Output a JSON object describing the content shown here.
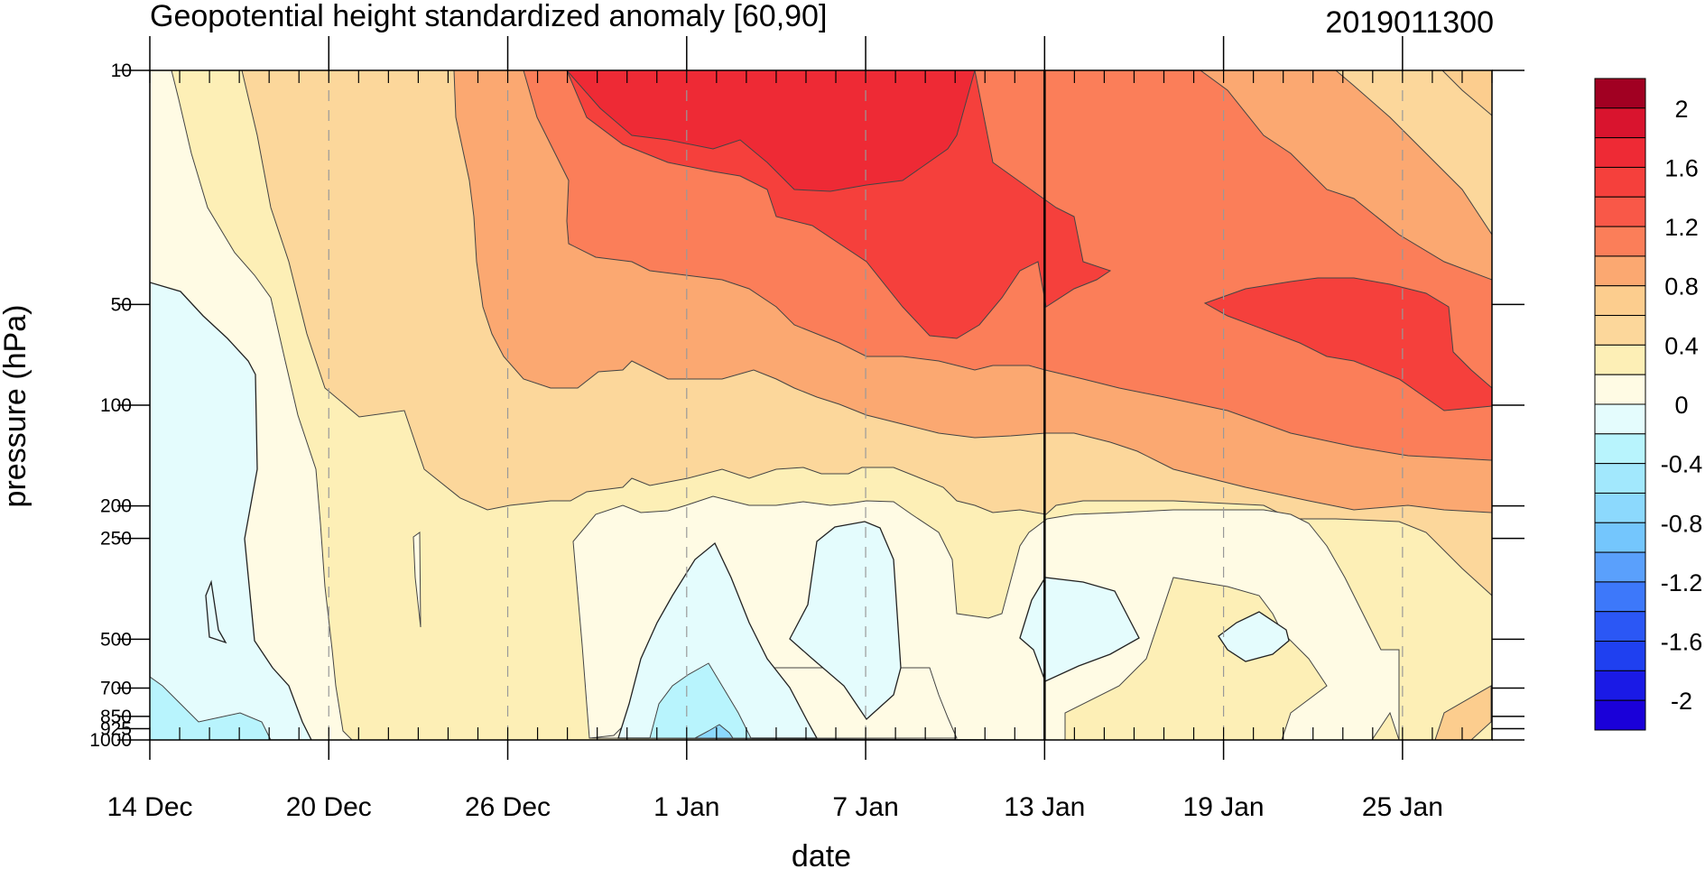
{
  "chart_data": {
    "type": "heatmap",
    "title": "Geopotential height standardized anomaly [60,90]",
    "timestamp": "2019011300",
    "xlabel": "date",
    "ylabel": "pressure (hPa)",
    "x_range": [
      "2018-12-14",
      "2019-01-28"
    ],
    "x_ticks": [
      {
        "date": "2018-12-14",
        "label": "14 Dec"
      },
      {
        "date": "2018-12-20",
        "label": "20 Dec"
      },
      {
        "date": "2018-12-26",
        "label": "26 Dec"
      },
      {
        "date": "2019-01-01",
        "label": "1 Jan"
      },
      {
        "date": "2019-01-07",
        "label": "7 Jan"
      },
      {
        "date": "2019-01-13",
        "label": "13 Jan"
      },
      {
        "date": "2019-01-19",
        "label": "19 Jan"
      },
      {
        "date": "2019-01-25",
        "label": "25 Jan"
      }
    ],
    "y_scale": "log",
    "y_range": [
      1000,
      10
    ],
    "y_ticks": [
      {
        "value": 10,
        "label": "10"
      },
      {
        "value": 50,
        "label": "50"
      },
      {
        "value": 100,
        "label": "100"
      },
      {
        "value": 200,
        "label": "200"
      },
      {
        "value": 250,
        "label": "250"
      },
      {
        "value": 500,
        "label": "500"
      },
      {
        "value": 700,
        "label": "700"
      },
      {
        "value": 850,
        "label": "850"
      },
      {
        "value": 925,
        "label": "925"
      },
      {
        "value": 1000,
        "label": "1000"
      }
    ],
    "analysis_date": "2019-01-13",
    "dashed_gridlines": true,
    "colorbar": {
      "position": "right",
      "labels": [
        "2",
        "1.6",
        "1.2",
        "0.8",
        "0.4",
        "0",
        "-0.4",
        "-0.8",
        "-1.2",
        "-1.6",
        "-2"
      ],
      "levels": [
        -2.2,
        -2.0,
        -1.8,
        -1.6,
        -1.4,
        -1.2,
        -1.0,
        -0.8,
        -0.6,
        -0.4,
        -0.2,
        0,
        0.2,
        0.4,
        0.6,
        0.8,
        1.0,
        1.2,
        1.4,
        1.6,
        1.8,
        2.0,
        2.2
      ],
      "colors": [
        "#1a00d9",
        "#1a1ae6",
        "#1f40f0",
        "#2b57f5",
        "#3d78fa",
        "#5aa0fc",
        "#74c6fd",
        "#8cd9fd",
        "#a2e8fd",
        "#b8f4fd",
        "#e4fcfd",
        "#fffbe4",
        "#fdefb6",
        "#fcd79b",
        "#fccd8e",
        "#fba871",
        "#fb7e59",
        "#f95848",
        "#f5403c",
        "#ee2a35",
        "#d9142e",
        "#a10022"
      ]
    },
    "regions": [
      {
        "name": "lt-10",
        "value": -1.0,
        "fill": "#8cd9fd",
        "points": [
          [
            "2019-01-01",
            1000
          ],
          [
            "2019-01-02",
            985
          ],
          [
            "2019-01-03",
            1000
          ]
        ]
      },
      {
        "name": "lt-06",
        "value": -0.5,
        "fill": "#b8f4fd",
        "points": [
          [
            "2019-01-01",
            1000
          ],
          [
            "2019-01-01",
            850
          ],
          [
            "2019-01-02",
            730
          ],
          [
            "2019-01-03",
            880
          ],
          [
            "2019-01-04",
            1000
          ]
        ]
      },
      {
        "name": "lt-06-left",
        "value": -0.5,
        "fill": "#b8f4fd",
        "points": [
          [
            "2018-12-14",
            1000
          ],
          [
            "2018-12-14",
            700
          ],
          [
            "2018-12-15",
            760
          ],
          [
            "2018-12-16",
            820
          ],
          [
            "2018-12-17",
            900
          ],
          [
            "2018-12-18",
            920
          ],
          [
            "2018-12-19",
            880
          ],
          [
            "2018-12-20",
            1000
          ]
        ]
      }
    ]
  }
}
